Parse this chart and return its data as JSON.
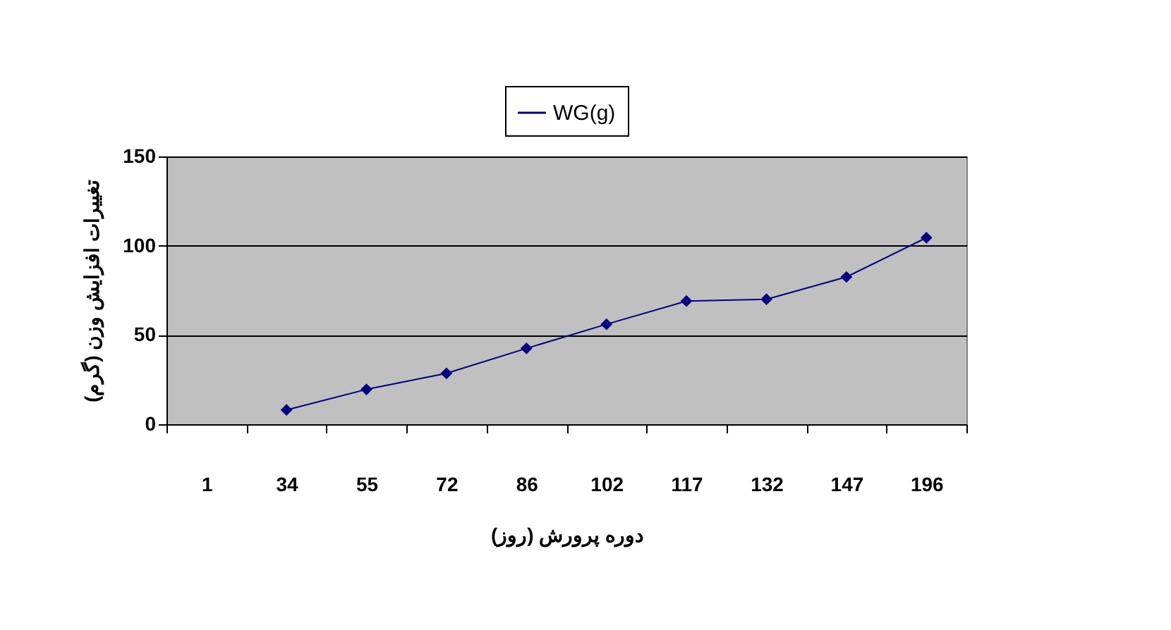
{
  "chart_data": {
    "type": "line",
    "xlabel": "دوره پرورش (روز)",
    "ylabel": "تغییرات افزایش وزن (گرم)",
    "categories": [
      "1",
      "34",
      "55",
      "72",
      "86",
      "102",
      "117",
      "132",
      "147",
      "196"
    ],
    "series": [
      {
        "name": "WG(g)",
        "color": "#000080",
        "values": [
          null,
          8,
          19.5,
          28.5,
          42.5,
          56,
          69,
          70,
          82.5,
          104.5
        ]
      }
    ],
    "ylim": [
      0,
      150
    ],
    "yticks": [
      0,
      50,
      100,
      150
    ],
    "grid": "y",
    "legend": "top",
    "marker": "diamond",
    "line_style": "solid"
  }
}
